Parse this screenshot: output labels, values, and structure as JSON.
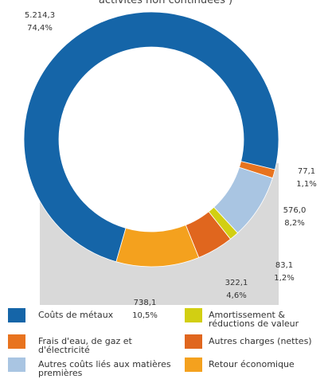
{
  "chart_data": {
    "type": "pie",
    "title": "activités non continuées )",
    "categories": [
      "Coûts de métaux",
      "Frais d'eau, de gaz et d'électricité",
      "Autres coûts liés aux matières premières",
      "Amortissement & réductions de valeur",
      "Autres charges (nettes)",
      "Retour économique"
    ],
    "values": [
      5214.3,
      77.1,
      576.0,
      83.1,
      322.1,
      738.1
    ],
    "value_labels": [
      "5.214,3",
      "77,1",
      "576,0",
      "83,1",
      "322,1",
      "738,1"
    ],
    "percentages": [
      74.4,
      1.1,
      8.2,
      1.2,
      4.6,
      10.5
    ],
    "percentage_labels": [
      "74,4%",
      "1,1%",
      "8,2%",
      "1,2%",
      "4,6%",
      "10,5%"
    ],
    "colors": [
      "#1565a8",
      "#e8731e",
      "#a9c5e2",
      "#d2cf12",
      "#e0661e",
      "#f4a11e"
    ]
  }
}
